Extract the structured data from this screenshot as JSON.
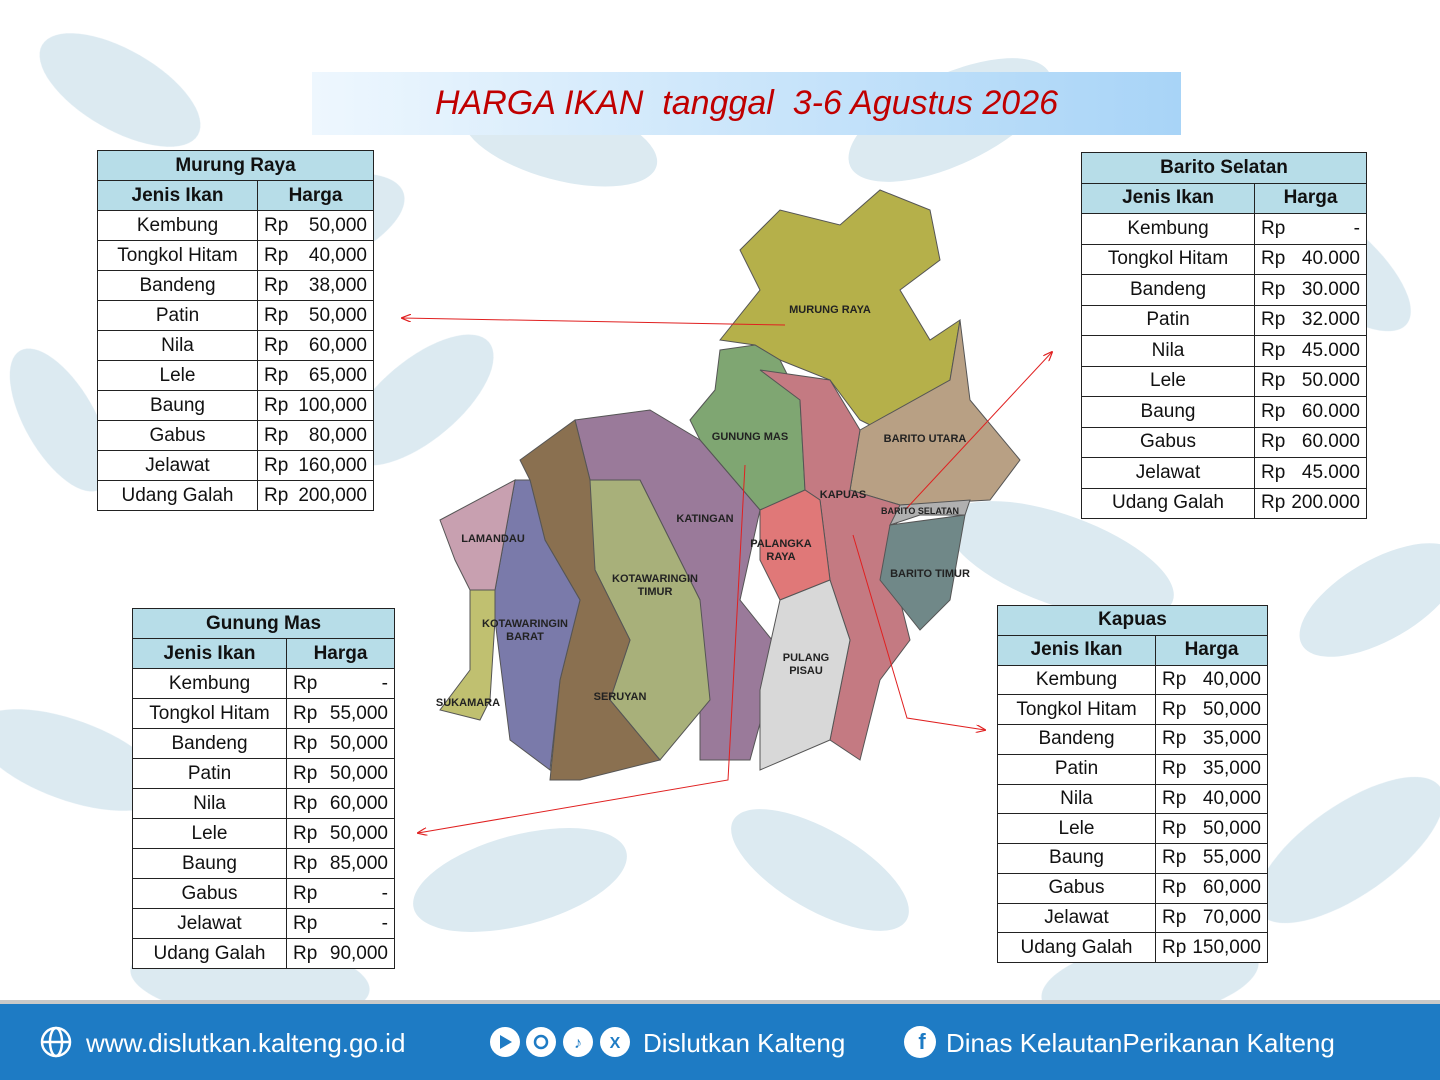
{
  "title": "HARGA IKAN  tanggal  3-6 Agustus 2026",
  "tables": [
    {
      "region": "Murung Raya",
      "headers": [
        "Jenis Ikan",
        "Harga"
      ],
      "rows": [
        [
          "Kembung",
          "Rp",
          "50,000"
        ],
        [
          "Tongkol Hitam",
          "Rp",
          "40,000"
        ],
        [
          "Bandeng",
          "Rp",
          "38,000"
        ],
        [
          "Patin",
          "Rp",
          "50,000"
        ],
        [
          "Nila",
          "Rp",
          "60,000"
        ],
        [
          "Lele",
          "Rp",
          "65,000"
        ],
        [
          "Baung",
          "Rp",
          "100,000"
        ],
        [
          "Gabus",
          "Rp",
          "80,000"
        ],
        [
          "Jelawat",
          "Rp",
          "160,000"
        ],
        [
          "Udang Galah",
          "Rp",
          "200,000"
        ]
      ]
    },
    {
      "region": "Barito Selatan",
      "headers": [
        "Jenis Ikan",
        "Harga"
      ],
      "rows": [
        [
          "Kembung",
          "Rp",
          "-"
        ],
        [
          "Tongkol Hitam",
          "Rp",
          "40.000"
        ],
        [
          "Bandeng",
          "Rp",
          "30.000"
        ],
        [
          "Patin",
          "Rp",
          "32.000"
        ],
        [
          "Nila",
          "Rp",
          "45.000"
        ],
        [
          "Lele",
          "Rp",
          "50.000"
        ],
        [
          "Baung",
          "Rp",
          "60.000"
        ],
        [
          "Gabus",
          "Rp",
          "60.000"
        ],
        [
          "Jelawat",
          "Rp",
          "45.000"
        ],
        [
          "Udang Galah",
          "Rp",
          "200.000"
        ]
      ]
    },
    {
      "region": "Gunung Mas",
      "headers": [
        "Jenis Ikan",
        "Harga"
      ],
      "rows": [
        [
          "Kembung",
          "Rp",
          "-"
        ],
        [
          "Tongkol Hitam",
          "Rp",
          "55,000"
        ],
        [
          "Bandeng",
          "Rp",
          "50,000"
        ],
        [
          "Patin",
          "Rp",
          "50,000"
        ],
        [
          "Nila",
          "Rp",
          "60,000"
        ],
        [
          "Lele",
          "Rp",
          "50,000"
        ],
        [
          "Baung",
          "Rp",
          "85,000"
        ],
        [
          "Gabus",
          "Rp",
          "-"
        ],
        [
          "Jelawat",
          "Rp",
          "-"
        ],
        [
          "Udang Galah",
          "Rp",
          "90,000"
        ]
      ]
    },
    {
      "region": "Kapuas",
      "headers": [
        "Jenis Ikan",
        "Harga"
      ],
      "rows": [
        [
          "Kembung",
          "Rp",
          "40,000"
        ],
        [
          "Tongkol Hitam",
          "Rp",
          "50,000"
        ],
        [
          "Bandeng",
          "Rp",
          "35,000"
        ],
        [
          "Patin",
          "Rp",
          "35,000"
        ],
        [
          "Nila",
          "Rp",
          "40,000"
        ],
        [
          "Lele",
          "Rp",
          "50,000"
        ],
        [
          "Baung",
          "Rp",
          "55,000"
        ],
        [
          "Gabus",
          "Rp",
          "60,000"
        ],
        [
          "Jelawat",
          "Rp",
          "70,000"
        ],
        [
          "Udang Galah",
          "Rp",
          "150,000"
        ]
      ]
    }
  ],
  "map_labels": [
    "MURUNG RAYA",
    "BARITO UTARA",
    "GUNUNG MAS",
    "KAPUAS",
    "BARITO SELATAN",
    "BARITO TIMUR",
    "KATINGAN",
    "PALANGKA RAYA",
    "LAMANDAU",
    "KOTAWARINGIN TIMUR",
    "KOTAWARINGIN BARAT",
    "PULANG PISAU",
    "SERUYAN",
    "SUKAMARA"
  ],
  "footer": {
    "website": "www.dislutkan.kalteng.go.id",
    "social": "Dislutkan Kalteng",
    "facebook": "Dinas KelautanPerikanan Kalteng"
  }
}
